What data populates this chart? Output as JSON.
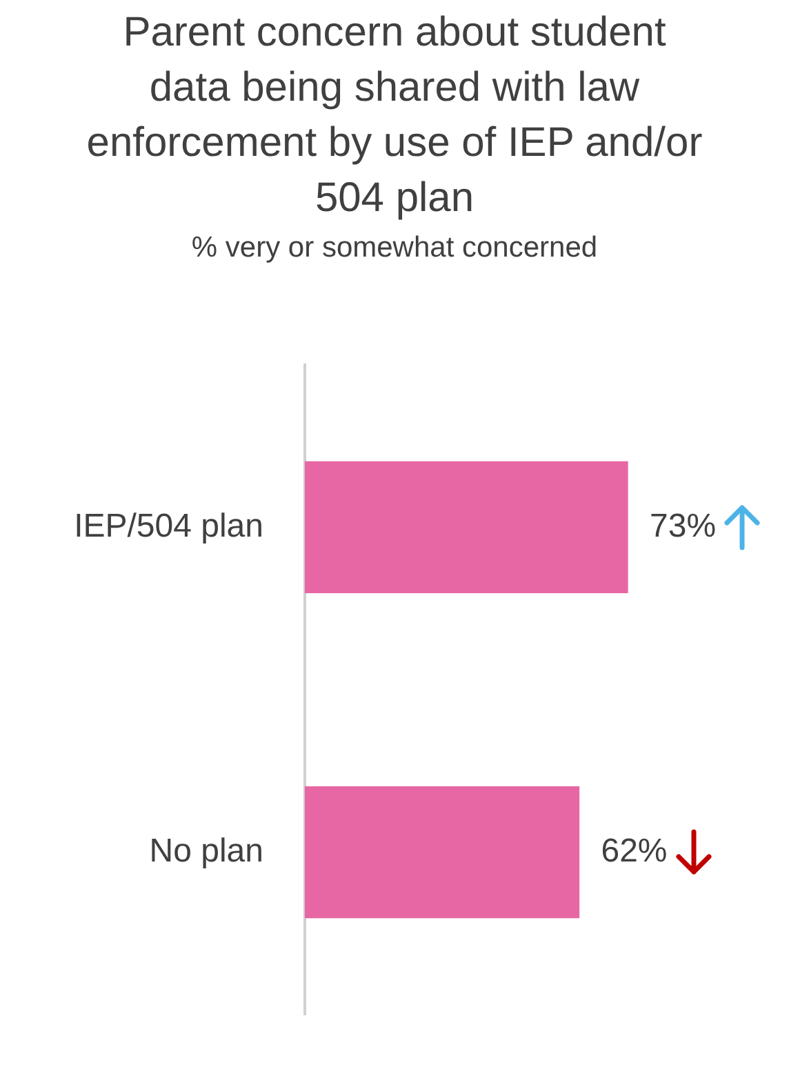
{
  "chart_data": {
    "type": "bar",
    "orientation": "horizontal",
    "title": "Parent concern about student data being shared with law enforcement by use of IEP and/or 504 plan",
    "subtitle": "% very or somewhat concerned",
    "categories": [
      "IEP/504 plan",
      "No plan"
    ],
    "values": [
      73,
      62
    ],
    "value_labels": [
      "73%",
      "62%"
    ],
    "color": "#e667a3",
    "grid": false,
    "legend": false
  }
}
